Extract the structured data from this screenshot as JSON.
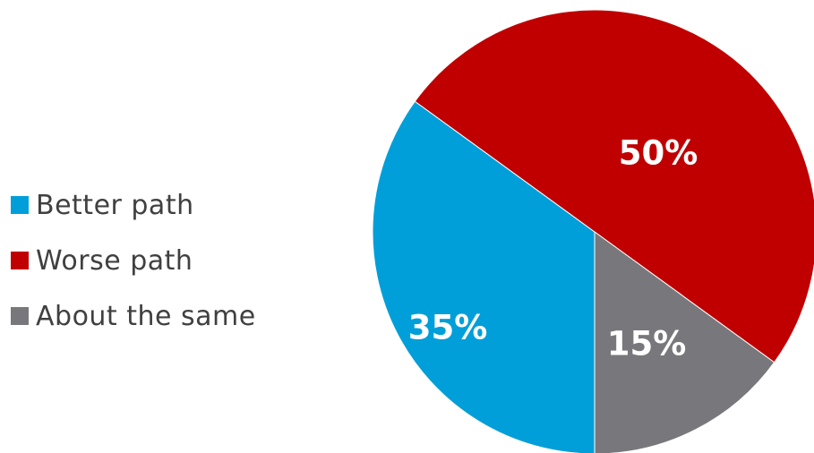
{
  "chart_data": {
    "type": "pie",
    "categories": [
      "Better path",
      "Worse path",
      "About the same"
    ],
    "values": [
      35,
      50,
      15
    ],
    "labels": [
      "35%",
      "50%",
      "15%"
    ],
    "colors": [
      "#009fd9",
      "#c00000",
      "#78787c"
    ],
    "legend_position": "left",
    "title": "",
    "start_angle_deg": -143,
    "direction": "clockwise_from_about_the_same_boundary"
  }
}
